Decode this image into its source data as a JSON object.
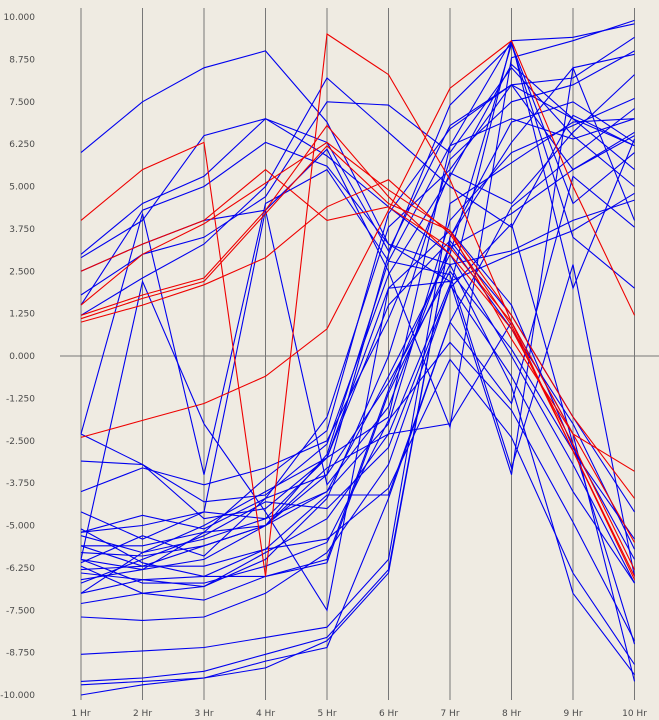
{
  "colors": {
    "background": "#efebe2",
    "axis": "#777777",
    "blue": "#0000ee",
    "red": "#ee0000"
  },
  "chart_data": {
    "type": "line",
    "title": "",
    "xlabel": "",
    "ylabel": "",
    "categories": [
      "1 Hr",
      "2 Hr",
      "3 Hr",
      "4 Hr",
      "5 Hr",
      "6 Hr",
      "7 Hr",
      "8 Hr",
      "9 Hr",
      "10 Hr"
    ],
    "yticks": [
      "10.000",
      "8.750",
      "7.500",
      "6.250",
      "5.000",
      "3.750",
      "2.500",
      "1.250",
      "0.000",
      "-1.250",
      "-2.500",
      "-3.750",
      "-5.000",
      "-6.250",
      "-7.500",
      "-8.750",
      "-10.000"
    ],
    "ylim": [
      -10,
      10
    ],
    "grid": "vertical lines at each category, horizontal line at zero",
    "legend": "none",
    "series": [
      {
        "color": "red",
        "values": [
          -2.4,
          -1.9,
          -1.4,
          -0.6,
          0.8,
          4.3,
          7.9,
          9.3,
          5.0,
          1.2
        ]
      },
      {
        "color": "red",
        "values": [
          4.0,
          5.5,
          6.3,
          -6.5,
          9.5,
          8.3,
          5.2,
          1.0,
          -2.8,
          -6.6
        ]
      },
      {
        "color": "red",
        "values": [
          2.5,
          3.3,
          4.0,
          5.5,
          4.0,
          4.4,
          3.2,
          1.0,
          -2.3,
          -5.5
        ]
      },
      {
        "color": "red",
        "values": [
          1.2,
          1.8,
          2.3,
          4.3,
          6.8,
          4.7,
          3.0,
          0.8,
          -2.6,
          -6.3
        ]
      },
      {
        "color": "red",
        "values": [
          1.1,
          1.7,
          2.2,
          4.2,
          6.2,
          4.5,
          3.7,
          0.5,
          -2.3,
          -3.4
        ]
      },
      {
        "color": "red",
        "values": [
          1.0,
          1.5,
          2.1,
          2.9,
          4.4,
          5.2,
          3.6,
          0.9,
          -2.8,
          -6.5
        ]
      },
      {
        "color": "red",
        "values": [
          1.5,
          3.0,
          3.9,
          5.1,
          6.3,
          4.9,
          3.7,
          1.2,
          -1.8,
          -4.2
        ]
      },
      {
        "color": "blue",
        "values": [
          6.0,
          7.5,
          8.5,
          9.0,
          6.9,
          3.3,
          2.7,
          3.1,
          4.0,
          4.6
        ]
      },
      {
        "color": "blue",
        "values": [
          3.0,
          4.5,
          5.3,
          7.0,
          6.3,
          3.1,
          6.8,
          8.0,
          7.0,
          6.2
        ]
      },
      {
        "color": "blue",
        "values": [
          2.5,
          3.3,
          4.0,
          4.3,
          6.1,
          2.5,
          -2.1,
          8.8,
          9.3,
          9.9
        ]
      },
      {
        "color": "blue",
        "values": [
          1.5,
          4.3,
          5.0,
          6.3,
          5.6,
          3.3,
          2.2,
          3.0,
          3.7,
          4.8
        ]
      },
      {
        "color": "blue",
        "values": [
          2.9,
          4.0,
          6.5,
          7.0,
          5.9,
          4.4,
          3.0,
          9.2,
          3.5,
          2.0
        ]
      },
      {
        "color": "blue",
        "values": [
          1.8,
          3.0,
          3.5,
          4.7,
          7.5,
          7.4,
          6.0,
          8.5,
          6.5,
          5.0
        ]
      },
      {
        "color": "blue",
        "values": [
          1.2,
          2.3,
          3.3,
          5.0,
          8.2,
          6.6,
          5.0,
          3.8,
          7.1,
          6.2
        ]
      },
      {
        "color": "blue",
        "values": [
          -2.3,
          -3.2,
          -4.3,
          -4.1,
          -2.6,
          2.4,
          5.3,
          8.6,
          7.0,
          5.5
        ]
      },
      {
        "color": "blue",
        "values": [
          -3.1,
          -3.2,
          -4.8,
          -4.5,
          -3.0,
          -1.8,
          6.2,
          9.3,
          9.4,
          9.8
        ]
      },
      {
        "color": "blue",
        "values": [
          -4.0,
          -3.3,
          -3.8,
          -3.3,
          -2.5,
          1.1,
          5.4,
          4.5,
          6.6,
          8.3
        ]
      },
      {
        "color": "blue",
        "values": [
          -5.2,
          -4.7,
          -5.1,
          -4.2,
          -1.8,
          3.8,
          5.5,
          8.0,
          8.2,
          9.4
        ]
      },
      {
        "color": "blue",
        "values": [
          -5.6,
          -5.6,
          -5.2,
          -3.6,
          -2.2,
          4.2,
          6.7,
          8.0,
          5.5,
          6.5
        ]
      },
      {
        "color": "blue",
        "values": [
          -5.8,
          -5.9,
          -5.6,
          -5.0,
          -2.9,
          2.8,
          6.2,
          7.0,
          6.4,
          7.0
        ]
      },
      {
        "color": "blue",
        "values": [
          -6.3,
          -6.2,
          -5.6,
          -5.0,
          -3.5,
          3.0,
          7.4,
          9.2,
          4.5,
          6.0
        ]
      },
      {
        "color": "blue",
        "values": [
          -6.6,
          -6.3,
          -6.0,
          -5.0,
          -4.0,
          -2.0,
          4.0,
          6.0,
          6.8,
          7.6
        ]
      },
      {
        "color": "blue",
        "values": [
          -7.0,
          -6.6,
          -6.5,
          -5.7,
          -4.1,
          -4.1,
          1.0,
          4.4,
          5.9,
          7.3
        ]
      },
      {
        "color": "blue",
        "values": [
          -7.3,
          -7.0,
          -6.8,
          -6.0,
          -4.2,
          0.0,
          5.8,
          7.5,
          8.0,
          9.0
        ]
      },
      {
        "color": "blue",
        "values": [
          -6.2,
          -7.0,
          -7.2,
          -6.5,
          -6.0,
          -1.0,
          3.2,
          4.2,
          5.5,
          6.6
        ]
      },
      {
        "color": "blue",
        "values": [
          -7.7,
          -7.8,
          -7.7,
          -7.0,
          -5.8,
          -3.2,
          2.0,
          9.3,
          2.0,
          6.4
        ]
      },
      {
        "color": "blue",
        "values": [
          -8.8,
          -8.7,
          -8.6,
          -8.3,
          -8.0,
          -6.0,
          4.5,
          5.7,
          6.9,
          7.0
        ]
      },
      {
        "color": "blue",
        "values": [
          -9.6,
          -9.5,
          -9.3,
          -8.8,
          -8.3,
          -6.3,
          3.5,
          6.3,
          8.5,
          8.9
        ]
      },
      {
        "color": "blue",
        "values": [
          -9.7,
          -9.6,
          -9.5,
          -9.2,
          -8.4,
          -6.4,
          3.5,
          6.9,
          7.5,
          6.3
        ]
      },
      {
        "color": "blue",
        "values": [
          -10.0,
          -9.7,
          -9.5,
          -9.0,
          -8.6,
          -4.2,
          1.0,
          -1.4,
          5.3,
          3.8
        ]
      },
      {
        "color": "blue",
        "values": [
          -5.1,
          -6.1,
          -6.5,
          -6.5,
          -6.1,
          -1.1,
          2.7,
          -0.9,
          -7.0,
          -9.4
        ]
      },
      {
        "color": "blue",
        "values": [
          -5.6,
          -6.2,
          -6.2,
          -5.7,
          -5.4,
          -3.9,
          -0.1,
          -2.4,
          -6.4,
          -9.1
        ]
      },
      {
        "color": "blue",
        "values": [
          -6.0,
          -6.7,
          -6.7,
          -6.2,
          -5.5,
          -1.9,
          0.4,
          -1.6,
          -4.9,
          -8.4
        ]
      },
      {
        "color": "blue",
        "values": [
          -6.4,
          -6.6,
          -6.8,
          -5.8,
          -4.8,
          -2.3,
          2.1,
          -0.6,
          -4.0,
          -6.7
        ]
      },
      {
        "color": "blue",
        "values": [
          -6.1,
          -5.3,
          -5.9,
          -4.2,
          -3.5,
          -0.8,
          2.5,
          0.2,
          -2.8,
          -5.4
        ]
      },
      {
        "color": "blue",
        "values": [
          -7.0,
          -5.8,
          -5.0,
          -4.0,
          -3.0,
          1.5,
          3.4,
          1.2,
          -1.8,
          -4.6
        ]
      },
      {
        "color": "blue",
        "values": [
          -5.3,
          -5.8,
          -5.4,
          -4.8,
          -4.0,
          -0.6,
          3.0,
          0.0,
          -3.2,
          -6.7
        ]
      },
      {
        "color": "blue",
        "values": [
          -4.6,
          -5.4,
          -4.6,
          -4.8,
          -3.0,
          2.0,
          3.7,
          1.5,
          -2.7,
          -6.0
        ]
      },
      {
        "color": "blue",
        "values": [
          -5.2,
          -5.0,
          -4.6,
          4.3,
          -3.8,
          -1.5,
          3.3,
          0.8,
          -2.0,
          -5.7
        ]
      },
      {
        "color": "blue",
        "values": [
          -6.7,
          -6.0,
          -5.3,
          -4.3,
          -4.5,
          -2.7,
          2.0,
          3.9,
          -2.6,
          -8.5
        ]
      },
      {
        "color": "blue",
        "values": [
          -6.0,
          -6.3,
          -5.2,
          -5.0,
          -3.3,
          -2.3,
          -2.0,
          1.0,
          -2.3,
          -9.6
        ]
      },
      {
        "color": "blue",
        "values": [
          -2.3,
          4.2,
          -3.5,
          4.5,
          5.5,
          2.8,
          2.4,
          -3.3,
          2.7,
          -6.5
        ]
      },
      {
        "color": "blue",
        "values": [
          -6.0,
          2.2,
          -2.0,
          -4.6,
          -7.5,
          2.0,
          2.2,
          -3.5,
          8.5,
          4.0
        ]
      }
    ]
  }
}
